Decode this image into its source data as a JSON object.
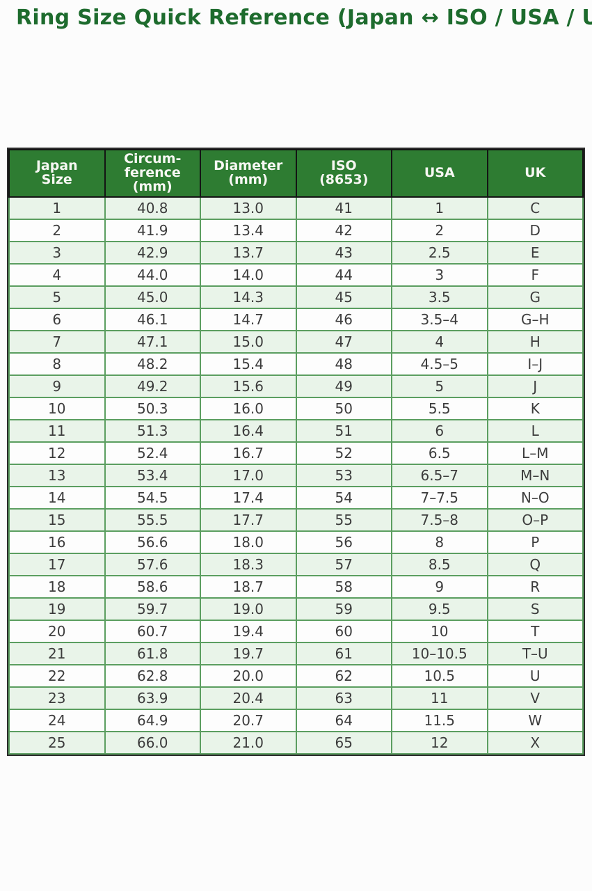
{
  "page": {
    "title": "Ring Size Quick Reference (Japan ↔ ISO / USA / UK)"
  },
  "colors": {
    "title_green": "#1d6b2d",
    "header_bg": "#2e7c32",
    "header_text": "#f7f7f3",
    "stripe_row_bg": "#e9f4e9",
    "plain_row_bg": "#fdfdfd",
    "grid_green": "#5b9e60",
    "outer_border": "#2b2b2b"
  },
  "table": {
    "headers": [
      "Japan\nSize",
      "Circum-\nference\n(mm)",
      "Diameter\n(mm)",
      "ISO\n(8653)",
      "USA",
      "UK"
    ],
    "rows": [
      [
        "1",
        "40.8",
        "13.0",
        "41",
        "1",
        "C"
      ],
      [
        "2",
        "41.9",
        "13.4",
        "42",
        "2",
        "D"
      ],
      [
        "3",
        "42.9",
        "13.7",
        "43",
        "2.5",
        "E"
      ],
      [
        "4",
        "44.0",
        "14.0",
        "44",
        "3",
        "F"
      ],
      [
        "5",
        "45.0",
        "14.3",
        "45",
        "3.5",
        "G"
      ],
      [
        "6",
        "46.1",
        "14.7",
        "46",
        "3.5–4",
        "G–H"
      ],
      [
        "7",
        "47.1",
        "15.0",
        "47",
        "4",
        "H"
      ],
      [
        "8",
        "48.2",
        "15.4",
        "48",
        "4.5–5",
        "I–J"
      ],
      [
        "9",
        "49.2",
        "15.6",
        "49",
        "5",
        "J"
      ],
      [
        "10",
        "50.3",
        "16.0",
        "50",
        "5.5",
        "K"
      ],
      [
        "11",
        "51.3",
        "16.4",
        "51",
        "6",
        "L"
      ],
      [
        "12",
        "52.4",
        "16.7",
        "52",
        "6.5",
        "L–M"
      ],
      [
        "13",
        "53.4",
        "17.0",
        "53",
        "6.5–7",
        "M–N"
      ],
      [
        "14",
        "54.5",
        "17.4",
        "54",
        "7–7.5",
        "N–O"
      ],
      [
        "15",
        "55.5",
        "17.7",
        "55",
        "7.5–8",
        "O–P"
      ],
      [
        "16",
        "56.6",
        "18.0",
        "56",
        "8",
        "P"
      ],
      [
        "17",
        "57.6",
        "18.3",
        "57",
        "8.5",
        "Q"
      ],
      [
        "18",
        "58.6",
        "18.7",
        "58",
        "9",
        "R"
      ],
      [
        "19",
        "59.7",
        "19.0",
        "59",
        "9.5",
        "S"
      ],
      [
        "20",
        "60.7",
        "19.4",
        "60",
        "10",
        "T"
      ],
      [
        "21",
        "61.8",
        "19.7",
        "61",
        "10–10.5",
        "T–U"
      ],
      [
        "22",
        "62.8",
        "20.0",
        "62",
        "10.5",
        "U"
      ],
      [
        "23",
        "63.9",
        "20.4",
        "63",
        "11",
        "V"
      ],
      [
        "24",
        "64.9",
        "20.7",
        "64",
        "11.5",
        "W"
      ],
      [
        "25",
        "66.0",
        "21.0",
        "65",
        "12",
        "X"
      ]
    ]
  }
}
